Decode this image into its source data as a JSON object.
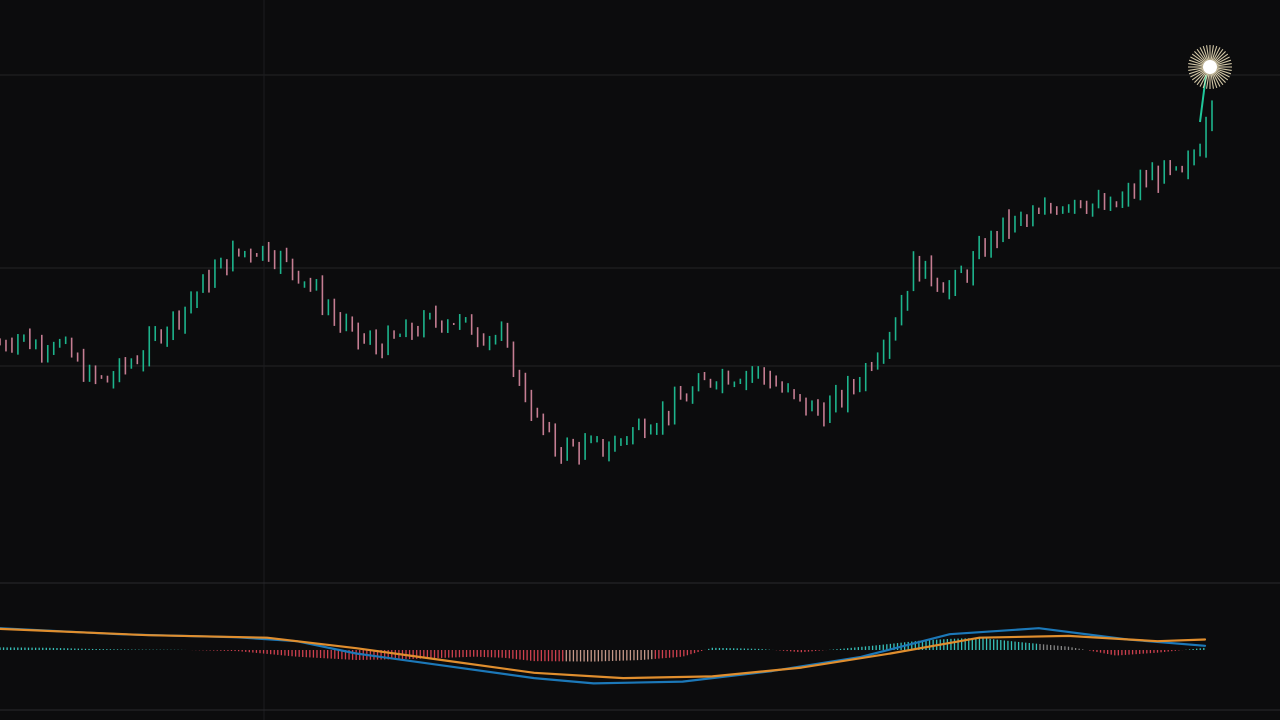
{
  "colors": {
    "background": "#0c0c0d",
    "gridline": "#232325",
    "crosshair": "#1d1d20",
    "separator": "#2a2a2d",
    "bull": "#1fc79a",
    "bear": "#d98aa1",
    "hist_pos": "#3fe0d8",
    "hist_neg": "#f24a5a",
    "hist_pos_fade": "#9a9a9a",
    "hist_neg_fade": "#e8b2a0",
    "macd_line": "#1c78b8",
    "signal_line": "#e08e2e",
    "marker": "#f3e6c0"
  },
  "chart_data": [
    {
      "type": "candlestick",
      "name": "",
      "ylim": [
        0,
        100
      ],
      "x_range": [
        0,
        203
      ],
      "grid": true,
      "series": [
        {
          "x": 0,
          "y": 42.2
        },
        {
          "x": 3,
          "y": 44.0
        },
        {
          "x": 6,
          "y": 41.9
        },
        {
          "x": 9,
          "y": 43.1
        },
        {
          "x": 12,
          "y": 39.6
        },
        {
          "x": 15,
          "y": 35.5
        },
        {
          "x": 18,
          "y": 34.8
        },
        {
          "x": 21,
          "y": 37.8
        },
        {
          "x": 24,
          "y": 40.4
        },
        {
          "x": 27,
          "y": 45.0
        },
        {
          "x": 30,
          "y": 48.3
        },
        {
          "x": 33,
          "y": 52.6
        },
        {
          "x": 36,
          "y": 56.7
        },
        {
          "x": 39,
          "y": 59.8
        },
        {
          "x": 42,
          "y": 61.2
        },
        {
          "x": 45,
          "y": 61.1
        },
        {
          "x": 48,
          "y": 58.2
        },
        {
          "x": 51,
          "y": 55.5
        },
        {
          "x": 54,
          "y": 50.9
        },
        {
          "x": 57,
          "y": 46.2
        },
        {
          "x": 60,
          "y": 43.3
        },
        {
          "x": 63,
          "y": 41.8
        },
        {
          "x": 66,
          "y": 42.9
        },
        {
          "x": 69,
          "y": 44.8
        },
        {
          "x": 72,
          "y": 46.7
        },
        {
          "x": 75,
          "y": 47.4
        },
        {
          "x": 78,
          "y": 45.7
        },
        {
          "x": 81,
          "y": 44.4
        },
        {
          "x": 84,
          "y": 43.2
        },
        {
          "x": 87,
          "y": 34.8
        },
        {
          "x": 90,
          "y": 26.8
        },
        {
          "x": 93,
          "y": 21.5
        },
        {
          "x": 96,
          "y": 21.4
        },
        {
          "x": 99,
          "y": 21.5
        },
        {
          "x": 102,
          "y": 21.4
        },
        {
          "x": 105,
          "y": 24.1
        },
        {
          "x": 108,
          "y": 26.4
        },
        {
          "x": 111,
          "y": 28.1
        },
        {
          "x": 114,
          "y": 30.8
        },
        {
          "x": 117,
          "y": 33.3
        },
        {
          "x": 120,
          "y": 36.1
        },
        {
          "x": 123,
          "y": 35.9
        },
        {
          "x": 126,
          "y": 36.9
        },
        {
          "x": 129,
          "y": 35.2
        },
        {
          "x": 132,
          "y": 31.8
        },
        {
          "x": 135,
          "y": 29.7
        },
        {
          "x": 138,
          "y": 28.6
        },
        {
          "x": 141,
          "y": 31.4
        },
        {
          "x": 144,
          "y": 35.4
        },
        {
          "x": 147,
          "y": 41.2
        },
        {
          "x": 150,
          "y": 47.2
        },
        {
          "x": 153,
          "y": 57.9
        },
        {
          "x": 156,
          "y": 56.1
        },
        {
          "x": 159,
          "y": 53.3
        },
        {
          "x": 162,
          "y": 57.0
        },
        {
          "x": 165,
          "y": 61.6
        },
        {
          "x": 168,
          "y": 65.6
        },
        {
          "x": 171,
          "y": 66.7
        },
        {
          "x": 174,
          "y": 67.5
        },
        {
          "x": 177,
          "y": 70.0
        },
        {
          "x": 180,
          "y": 71.5
        },
        {
          "x": 183,
          "y": 70.1
        },
        {
          "x": 186,
          "y": 68.9
        },
        {
          "x": 189,
          "y": 71.8
        },
        {
          "x": 192,
          "y": 75.4
        },
        {
          "x": 195,
          "y": 76.4
        },
        {
          "x": 198,
          "y": 75.5
        },
        {
          "x": 201,
          "y": 82.5
        },
        {
          "x": 203,
          "y": 92.6
        }
      ]
    },
    {
      "type": "histogram",
      "name": "",
      "ylim": [
        -1,
        1
      ],
      "x_range": [
        0,
        203
      ],
      "histogram": [
        {
          "x": 0,
          "v": 0.12
        },
        {
          "x": 8,
          "v": 0.1
        },
        {
          "x": 15,
          "v": 0.05
        },
        {
          "x": 22,
          "v": 0.02
        },
        {
          "x": 30,
          "v": 0.01
        },
        {
          "x": 40,
          "v": -0.05
        },
        {
          "x": 50,
          "v": -0.3
        },
        {
          "x": 60,
          "v": -0.45
        },
        {
          "x": 70,
          "v": -0.4
        },
        {
          "x": 80,
          "v": -0.3
        },
        {
          "x": 85,
          "v": -0.35
        },
        {
          "x": 90,
          "v": -0.5
        },
        {
          "x": 100,
          "v": -0.52
        },
        {
          "x": 108,
          "v": -0.45
        },
        {
          "x": 115,
          "v": -0.3
        },
        {
          "x": 120,
          "v": 0.1
        },
        {
          "x": 128,
          "v": 0.05
        },
        {
          "x": 135,
          "v": -0.1
        },
        {
          "x": 142,
          "v": 0.06
        },
        {
          "x": 148,
          "v": 0.22
        },
        {
          "x": 155,
          "v": 0.42
        },
        {
          "x": 160,
          "v": 0.5
        },
        {
          "x": 165,
          "v": 0.55
        },
        {
          "x": 172,
          "v": 0.35
        },
        {
          "x": 180,
          "v": 0.15
        },
        {
          "x": 188,
          "v": -0.25
        },
        {
          "x": 195,
          "v": -0.12
        },
        {
          "x": 203,
          "v": 0.1
        }
      ],
      "series": [
        {
          "values": [
            {
              "x": 0,
              "y": 0.62
            },
            {
              "x": 20,
              "y": 0.45
            },
            {
              "x": 40,
              "y": 0.36
            },
            {
              "x": 50,
              "y": 0.25
            },
            {
              "x": 60,
              "y": -0.1
            },
            {
              "x": 75,
              "y": -0.45
            },
            {
              "x": 90,
              "y": -0.8
            },
            {
              "x": 100,
              "y": -0.95
            },
            {
              "x": 115,
              "y": -0.9
            },
            {
              "x": 130,
              "y": -0.6
            },
            {
              "x": 145,
              "y": -0.2
            },
            {
              "x": 160,
              "y": 0.45
            },
            {
              "x": 175,
              "y": 0.62
            },
            {
              "x": 190,
              "y": 0.3
            },
            {
              "x": 203,
              "y": 0.12
            }
          ]
        },
        {
          "values": [
            {
              "x": 0,
              "y": 0.6
            },
            {
              "x": 25,
              "y": 0.42
            },
            {
              "x": 45,
              "y": 0.35
            },
            {
              "x": 60,
              "y": 0.05
            },
            {
              "x": 75,
              "y": -0.3
            },
            {
              "x": 90,
              "y": -0.65
            },
            {
              "x": 105,
              "y": -0.8
            },
            {
              "x": 120,
              "y": -0.75
            },
            {
              "x": 135,
              "y": -0.5
            },
            {
              "x": 150,
              "y": -0.1
            },
            {
              "x": 165,
              "y": 0.35
            },
            {
              "x": 180,
              "y": 0.4
            },
            {
              "x": 195,
              "y": 0.25
            },
            {
              "x": 203,
              "y": 0.3
            }
          ]
        }
      ]
    }
  ]
}
